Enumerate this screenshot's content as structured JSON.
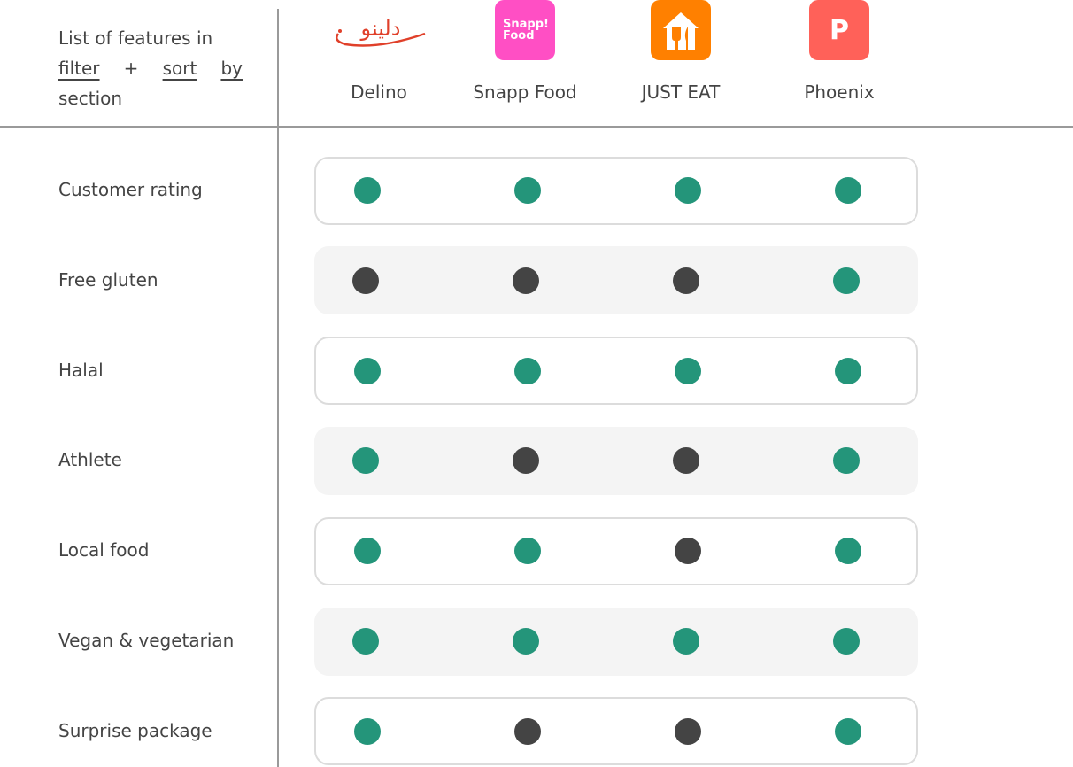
{
  "intro": {
    "line1": "List of features in",
    "filter": "filter",
    "plus": "+",
    "sort": "sort",
    "by": "by",
    "line3": "section"
  },
  "brands": [
    {
      "name": "Delino",
      "logo_text": "دلینو",
      "color": "#e0402a"
    },
    {
      "name": "Snapp Food",
      "logo_text": "Snapp! Food",
      "color": "#ff4fc4"
    },
    {
      "name": "JUST EAT",
      "logo_text": "",
      "color": "#ff8000"
    },
    {
      "name": "Phoenix",
      "logo_text": "P",
      "color": "#ff6159"
    }
  ],
  "colors": {
    "yes": "#24957a",
    "no": "#444444"
  },
  "features": [
    {
      "label": "Customer rating",
      "values": [
        true,
        true,
        true,
        true
      ]
    },
    {
      "label": "Free gluten",
      "values": [
        false,
        false,
        false,
        true
      ]
    },
    {
      "label": "Halal",
      "values": [
        true,
        true,
        true,
        true
      ]
    },
    {
      "label": "Athlete",
      "values": [
        true,
        false,
        false,
        true
      ]
    },
    {
      "label": "Local food",
      "values": [
        true,
        true,
        false,
        true
      ]
    },
    {
      "label": "Vegan & vegetarian",
      "values": [
        true,
        true,
        true,
        true
      ]
    },
    {
      "label": "Surprise package",
      "values": [
        true,
        false,
        false,
        true
      ]
    }
  ]
}
